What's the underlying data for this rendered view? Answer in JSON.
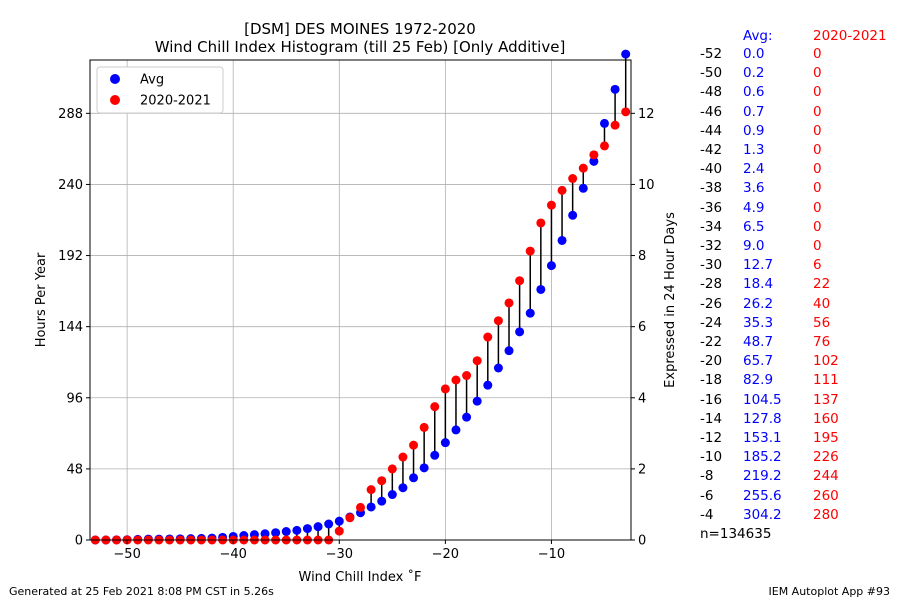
{
  "chart_data": {
    "type": "scatter",
    "title_line1": "[DSM] DES MOINES 1972-2020",
    "title_line2": "Wind Chill Index Histogram (till 25 Feb) [Only Additive]",
    "xlabel": "Wind Chill Index $^\\circ$F",
    "xlabel_display": "Wind Chill Index ˚F",
    "ylabel_left": "Hours Per Year",
    "ylabel_right": "Expressed in 24 Hour Days",
    "xlim": [
      -53.5,
      -2.5
    ],
    "ylim_left": [
      0,
      324
    ],
    "ylim_right": [
      0,
      13.5
    ],
    "x_ticks": [
      -50,
      -40,
      -30,
      -20,
      -10
    ],
    "x_tick_labels": [
      "−50",
      "−40",
      "−30",
      "−20",
      "−10"
    ],
    "y_left_ticks": [
      0,
      48,
      96,
      144,
      192,
      240,
      288
    ],
    "y_right_ticks": [
      0,
      2,
      4,
      6,
      8,
      10,
      12
    ],
    "grid": true,
    "legend_position": "top-left",
    "series": [
      {
        "name": "Avg",
        "color": "#0000ff",
        "x": [
          -53,
          -52,
          -51,
          -50,
          -49,
          -48,
          -47,
          -46,
          -45,
          -44,
          -43,
          -42,
          -41,
          -40,
          -39,
          -38,
          -37,
          -36,
          -35,
          -34,
          -33,
          -32,
          -31,
          -30,
          -29,
          -28,
          -27,
          -26,
          -25,
          -24,
          -23,
          -22,
          -21,
          -20,
          -19,
          -18,
          -17,
          -16,
          -15,
          -14,
          -13,
          -12,
          -11,
          -10,
          -9,
          -8,
          -7,
          -6,
          -5,
          -4,
          -3
        ],
        "values": [
          0.0,
          0.0,
          0.1,
          0.2,
          0.4,
          0.6,
          0.6,
          0.7,
          0.8,
          0.9,
          1.1,
          1.3,
          1.8,
          2.4,
          3.0,
          3.6,
          4.2,
          4.9,
          5.7,
          6.5,
          7.7,
          9.0,
          10.8,
          12.7,
          15.5,
          18.4,
          22.3,
          26.2,
          30.7,
          35.3,
          42.0,
          48.7,
          57.2,
          65.7,
          74.3,
          82.9,
          93.7,
          104.5,
          116.1,
          127.8,
          140.5,
          153.1,
          169.1,
          185.2,
          202.2,
          219.2,
          237.4,
          255.6,
          281.2,
          304.2,
          328.0
        ]
      },
      {
        "name": "2020-2021",
        "color": "#ff0000",
        "x": [
          -53,
          -52,
          -51,
          -50,
          -49,
          -48,
          -47,
          -46,
          -45,
          -44,
          -43,
          -42,
          -41,
          -40,
          -39,
          -38,
          -37,
          -36,
          -35,
          -34,
          -33,
          -32,
          -31,
          -30,
          -29,
          -28,
          -27,
          -26,
          -25,
          -24,
          -23,
          -22,
          -21,
          -20,
          -19,
          -18,
          -17,
          -16,
          -15,
          -14,
          -13,
          -12,
          -11,
          -10,
          -9,
          -8,
          -7,
          -6,
          -5,
          -4,
          -3
        ],
        "values": [
          0,
          0,
          0,
          0,
          0,
          0,
          0,
          0,
          0,
          0,
          0,
          0,
          0,
          0,
          0,
          0,
          0,
          0,
          0,
          0,
          0,
          0,
          0,
          6,
          15,
          22,
          34,
          40,
          48,
          56,
          64,
          76,
          90,
          102,
          108,
          111,
          121,
          137,
          148,
          160,
          175,
          195,
          214,
          226,
          236,
          244,
          251,
          260,
          266,
          280,
          289
        ]
      }
    ],
    "table": {
      "header_avg": "Avg:",
      "header_year": "2020-2021",
      "rows": [
        {
          "wc": "-52",
          "avg": "0.0",
          "year": "0"
        },
        {
          "wc": "-50",
          "avg": "0.2",
          "year": "0"
        },
        {
          "wc": "-48",
          "avg": "0.6",
          "year": "0"
        },
        {
          "wc": "-46",
          "avg": "0.7",
          "year": "0"
        },
        {
          "wc": "-44",
          "avg": "0.9",
          "year": "0"
        },
        {
          "wc": "-42",
          "avg": "1.3",
          "year": "0"
        },
        {
          "wc": "-40",
          "avg": "2.4",
          "year": "0"
        },
        {
          "wc": "-38",
          "avg": "3.6",
          "year": "0"
        },
        {
          "wc": "-36",
          "avg": "4.9",
          "year": "0"
        },
        {
          "wc": "-34",
          "avg": "6.5",
          "year": "0"
        },
        {
          "wc": "-32",
          "avg": "9.0",
          "year": "0"
        },
        {
          "wc": "-30",
          "avg": "12.7",
          "year": "6"
        },
        {
          "wc": "-28",
          "avg": "18.4",
          "year": "22"
        },
        {
          "wc": "-26",
          "avg": "26.2",
          "year": "40"
        },
        {
          "wc": "-24",
          "avg": "35.3",
          "year": "56"
        },
        {
          "wc": "-22",
          "avg": "48.7",
          "year": "76"
        },
        {
          "wc": "-20",
          "avg": "65.7",
          "year": "102"
        },
        {
          "wc": "-18",
          "avg": "82.9",
          "year": "111"
        },
        {
          "wc": "-16",
          "avg": "104.5",
          "year": "137"
        },
        {
          "wc": "-14",
          "avg": "127.8",
          "year": "160"
        },
        {
          "wc": "-12",
          "avg": "153.1",
          "year": "195"
        },
        {
          "wc": "-10",
          "avg": "185.2",
          "year": "226"
        },
        {
          "wc": "-8",
          "avg": "219.2",
          "year": "244"
        },
        {
          "wc": "-6",
          "avg": "255.6",
          "year": "260"
        },
        {
          "wc": "-4",
          "avg": "304.2",
          "year": "280"
        }
      ],
      "n_label": "n=134635"
    }
  },
  "footer": {
    "left": "Generated at 25 Feb 2021 8:08 PM CST in 5.26s",
    "right": "IEM Autoplot App #93"
  }
}
